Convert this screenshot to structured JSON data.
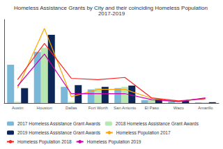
{
  "chart_data": {
    "type": "bar",
    "title": "Homeless Assistance Grants by City and their coinciding Homeless Population 2017-2019",
    "categories": [
      "Austin",
      "Houston",
      "Dallas",
      "Fort Worth",
      "San Antonio",
      "El Paso",
      "Waco",
      "Amarillo"
    ],
    "series": [
      {
        "name": "2017 Homeless Assistance Grant Awards",
        "type": "bar",
        "color": "#7ab8d9",
        "values": [
          9000,
          12000,
          3800,
          3200,
          3500,
          700,
          350,
          150
        ]
      },
      {
        "name": "2018 Homeless Assistance Grant Awards",
        "type": "bar",
        "color": "#b8e8b0",
        "values": [
          300,
          13000,
          300,
          3500,
          3800,
          800,
          150,
          150
        ]
      },
      {
        "name": "2019 Homeless Assistance Grant Awards",
        "type": "bar",
        "color": "#0d2557",
        "values": [
          3500,
          16000,
          4200,
          3800,
          4100,
          900,
          500,
          200
        ]
      },
      {
        "name": "Homeless Population 2017",
        "type": "line",
        "color": "#ffa500",
        "values": [
          3500,
          17500,
          1500,
          3200,
          3200,
          1100,
          400,
          1100
        ]
      },
      {
        "name": "Homeless Population 2018",
        "type": "line",
        "color": "#ff2222",
        "values": [
          5500,
          14000,
          5800,
          5500,
          6000,
          1200,
          500,
          1000
        ]
      },
      {
        "name": "Homeless Population 2019",
        "type": "line",
        "color": "#cc00aa",
        "values": [
          4000,
          11500,
          2200,
          2200,
          2200,
          800,
          350,
          1200
        ]
      }
    ],
    "ylim": [
      0,
      19600
    ],
    "grid": false,
    "tick_labels": "x",
    "legend": "lower left"
  }
}
